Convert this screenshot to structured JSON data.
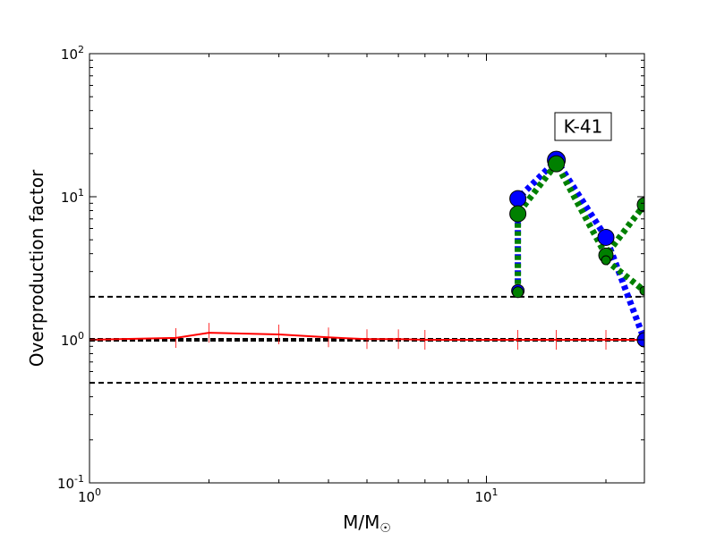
{
  "chart_data": {
    "type": "line",
    "xlabel": "M/M",
    "xlabel_subscript": "☉",
    "ylabel": "Overproduction factor",
    "xscale": "log",
    "yscale": "log",
    "xlim": [
      1,
      25
    ],
    "ylim": [
      0.1,
      100
    ],
    "x_ticks": [
      {
        "value": 1,
        "base": "10",
        "exp": "0"
      },
      {
        "value": 10,
        "base": "10",
        "exp": "1"
      }
    ],
    "y_ticks": [
      {
        "value": 0.1,
        "base": "10",
        "exp": "-1"
      },
      {
        "value": 1,
        "base": "10",
        "exp": "0"
      },
      {
        "value": 10,
        "base": "10",
        "exp": "1"
      },
      {
        "value": 100,
        "base": "10",
        "exp": "2"
      }
    ],
    "annotation": "K-41",
    "reference_lines": [
      {
        "y": 2.0,
        "style": "dashed",
        "color": "#000000"
      },
      {
        "y": 1.0,
        "style": "dashed",
        "color": "#000000",
        "bold": true
      },
      {
        "y": 0.5,
        "style": "dashed",
        "color": "#000000"
      }
    ],
    "series": [
      {
        "style": "solid",
        "color": "#ff0000",
        "marker": "vline",
        "x": [
          1.0,
          1.65,
          2.0,
          3.0,
          4.0,
          5.0,
          6.0,
          7.0,
          12.0,
          15.0,
          20.0,
          25.0
        ],
        "y": [
          1.0,
          1.03,
          1.12,
          1.09,
          1.04,
          1.01,
          1.01,
          1.0,
          1.0,
          1.0,
          1.0,
          1.0
        ]
      },
      {
        "style": "dotted",
        "color": "#0000ff",
        "marker": "circle",
        "x": [
          12.0,
          12.0,
          15.0,
          20.0,
          25.0
        ],
        "y": [
          2.2,
          9.7,
          18.0,
          5.2,
          1.0
        ]
      },
      {
        "style": "dotted",
        "color": "#008000",
        "marker": "circle",
        "x": [
          12.0,
          12.0,
          15.0,
          20.0,
          25.0,
          20.0,
          25.0
        ],
        "y": [
          2.15,
          7.6,
          17.0,
          3.9,
          8.8,
          3.6,
          2.2
        ]
      }
    ],
    "colors": {
      "red": "#ff0000",
      "blue": "#0000ff",
      "green": "#008000",
      "frame": "#000000"
    }
  }
}
